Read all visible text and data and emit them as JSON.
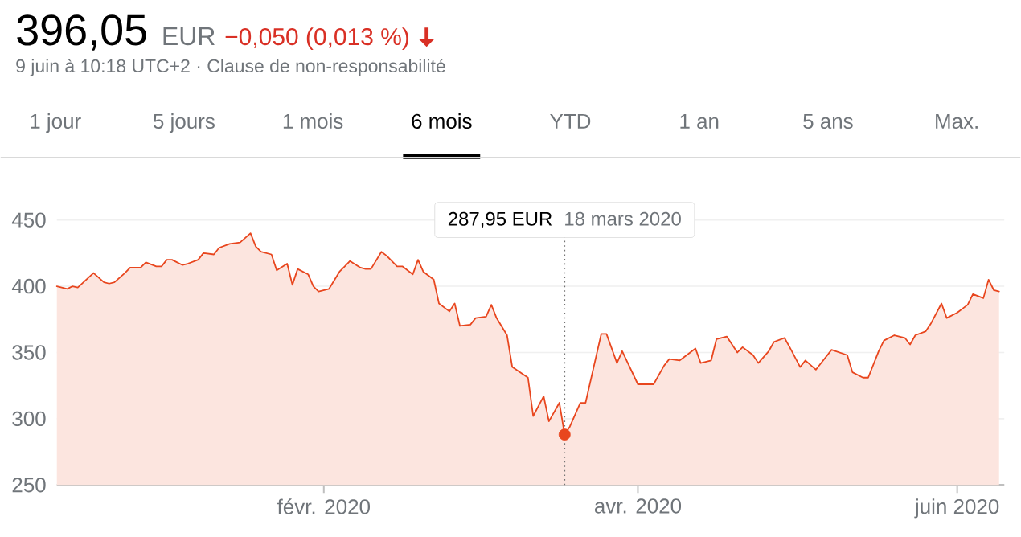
{
  "chart_data": {
    "type": "area",
    "title": "396,05",
    "subtitle": "9 juin à 10:18 UTC+2 · Clause de non-responsabilité",
    "annotations": [
      "EUR",
      "−0,050 (0,013 %)",
      "1 jour",
      "5 jours",
      "1 mois",
      "6 mois",
      "YTD",
      "1 an",
      "5 ans",
      "Max.",
      "287,95 EUR"
    ],
    "series": [
      {
        "color": "#e8461e",
        "marker": "none",
        "x": [
          "2019-12-12",
          "2019-12-14",
          "2019-12-15",
          "2019-12-16",
          "2019-12-19",
          "2019-12-21",
          "2019-12-22",
          "2019-12-23",
          "2019-12-25",
          "2019-12-26",
          "2019-12-28",
          "2019-12-29",
          "2019-12-31",
          "2020-01-01",
          "2020-01-02",
          "2020-01-03",
          "2020-01-05",
          "2020-01-06",
          "2020-01-08",
          "2020-01-09",
          "2020-01-11",
          "2020-01-12",
          "2020-01-14",
          "2020-01-16",
          "2020-01-18",
          "2020-01-19",
          "2020-01-20",
          "2020-01-22",
          "2020-01-23",
          "2020-01-25",
          "2020-01-26",
          "2020-01-27",
          "2020-01-29",
          "2020-01-30",
          "2020-01-31",
          "2020-02-02",
          "2020-02-04",
          "2020-02-05",
          "2020-02-06",
          "2020-02-08",
          "2020-02-09",
          "2020-02-10",
          "2020-02-12",
          "2020-02-13",
          "2020-02-15",
          "2020-02-16",
          "2020-02-18",
          "2020-02-19",
          "2020-02-20",
          "2020-02-22",
          "2020-02-23",
          "2020-02-25",
          "2020-02-26",
          "2020-02-27",
          "2020-02-29",
          "2020-03-01",
          "2020-03-03",
          "2020-03-04",
          "2020-03-05",
          "2020-03-07",
          "2020-03-08",
          "2020-03-11",
          "2020-03-12",
          "2020-03-14",
          "2020-03-15",
          "2020-03-17",
          "2020-03-18",
          "2020-03-19",
          "2020-03-21",
          "2020-03-22",
          "2020-03-25",
          "2020-03-26",
          "2020-03-28",
          "2020-03-29",
          "2020-04-01",
          "2020-04-04",
          "2020-04-06",
          "2020-04-07",
          "2020-04-09",
          "2020-04-12",
          "2020-04-13",
          "2020-04-15",
          "2020-04-16",
          "2020-04-18",
          "2020-04-20",
          "2020-04-21",
          "2020-04-23",
          "2020-04-24",
          "2020-04-26",
          "2020-04-27",
          "2020-04-29",
          "2020-04-30",
          "2020-05-02",
          "2020-05-03",
          "2020-05-05",
          "2020-05-08",
          "2020-05-11",
          "2020-05-12",
          "2020-05-14",
          "2020-05-15",
          "2020-05-17",
          "2020-05-18",
          "2020-05-20",
          "2020-05-22",
          "2020-05-23",
          "2020-05-24",
          "2020-05-26",
          "2020-05-27",
          "2020-05-29",
          "2020-05-30",
          "2020-06-01",
          "2020-06-03",
          "2020-06-04",
          "2020-06-06",
          "2020-06-07",
          "2020-06-08",
          "2020-06-09"
        ],
        "values": [
          400,
          398,
          400,
          399,
          410,
          403,
          402,
          403,
          410,
          414,
          414,
          418,
          415,
          415,
          420,
          420,
          416,
          417,
          420,
          425,
          424,
          429,
          432,
          433,
          440,
          430,
          426,
          424,
          412,
          417,
          401,
          413,
          409,
          400,
          396,
          398,
          411,
          415,
          419,
          414,
          413,
          413,
          426,
          423,
          415,
          415,
          409,
          420,
          411,
          405,
          387,
          381,
          387,
          370,
          371,
          376,
          377,
          386,
          376,
          363,
          339,
          331,
          302,
          317,
          298,
          312,
          288,
          294,
          312,
          312,
          364,
          364,
          342,
          351,
          326,
          326,
          340,
          345,
          344,
          353,
          342,
          344,
          360,
          362,
          350,
          354,
          348,
          342,
          351,
          358,
          361,
          354,
          339,
          344,
          337,
          352,
          348,
          335,
          331,
          331,
          351,
          359,
          363,
          361,
          356,
          363,
          366,
          372,
          387,
          376,
          380,
          386,
          394,
          391,
          405,
          397,
          396
        ]
      },
      {
        "type": "scatter",
        "color": "#e8461e",
        "marker": "circle",
        "x": [
          "2020-03-18"
        ],
        "values": [
          288
        ]
      }
    ],
    "xlim": [
      "2019-12-12",
      "2020-06-10"
    ],
    "xticks": [
      {
        "value": "2020-02-01",
        "label": "févr. 2020"
      },
      {
        "value": "2020-04-01",
        "label": "avr. 2020"
      },
      {
        "value": "2020-06-01",
        "label": "juin 2020"
      }
    ],
    "ylim": [
      250,
      450
    ],
    "yticks": [
      250,
      300,
      350,
      400,
      450
    ],
    "grid": "y",
    "ref_lines": [
      {
        "axis": "x",
        "value": "2020-03-18",
        "label": "18 mars 2020",
        "line_style": "dotted"
      }
    ]
  }
}
